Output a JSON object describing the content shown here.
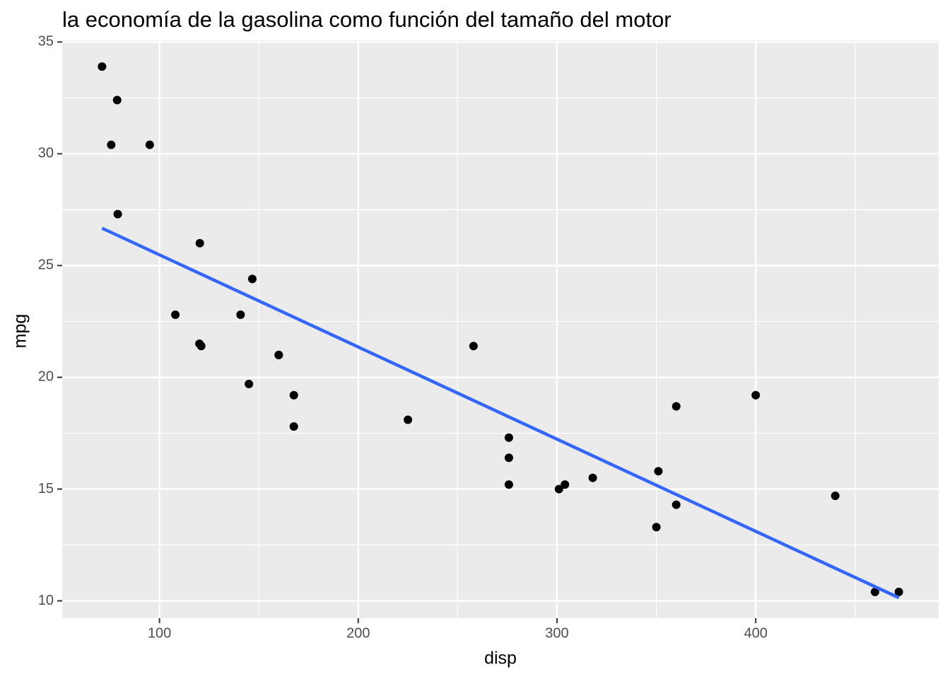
{
  "chart_data": {
    "type": "scatter",
    "title": "la economía de la gasolina como función del tamaño del motor",
    "x_label": "disp",
    "y_label": "mpg",
    "x": [
      160,
      160,
      108,
      258,
      360,
      225,
      360,
      146.7,
      140.8,
      167.6,
      167.6,
      275.8,
      275.8,
      275.8,
      472,
      460,
      440,
      78.7,
      75.7,
      71.1,
      120.1,
      318,
      304,
      350,
      400,
      79,
      120.3,
      95.1,
      351,
      145,
      301,
      121
    ],
    "values": [
      21,
      21,
      22.8,
      21.4,
      18.7,
      18.1,
      14.3,
      24.4,
      22.8,
      19.2,
      17.8,
      16.4,
      17.3,
      15.2,
      10.4,
      10.4,
      14.7,
      32.4,
      30.4,
      33.9,
      21.5,
      15.5,
      15.2,
      13.3,
      19.2,
      27.3,
      26,
      30.4,
      15.8,
      19.7,
      15,
      21.4
    ],
    "color": "#000000",
    "trend": {
      "type": "line",
      "x": [
        71.1,
        472
      ],
      "values": [
        26.67,
        10.14
      ],
      "color": "#3366ff"
    },
    "xlim": [
      51.055,
      492.045
    ],
    "ylim": [
      9.225,
      35.075
    ],
    "xticks": [
      100,
      200,
      300,
      400
    ],
    "yticks": [
      10,
      15,
      20,
      25,
      30,
      35
    ],
    "x_minor_ticks": [
      150,
      250,
      350,
      450
    ],
    "y_minor_ticks": [
      12.5,
      17.5,
      22.5,
      27.5,
      32.5
    ],
    "grid": true,
    "background": "#ebebeb"
  }
}
